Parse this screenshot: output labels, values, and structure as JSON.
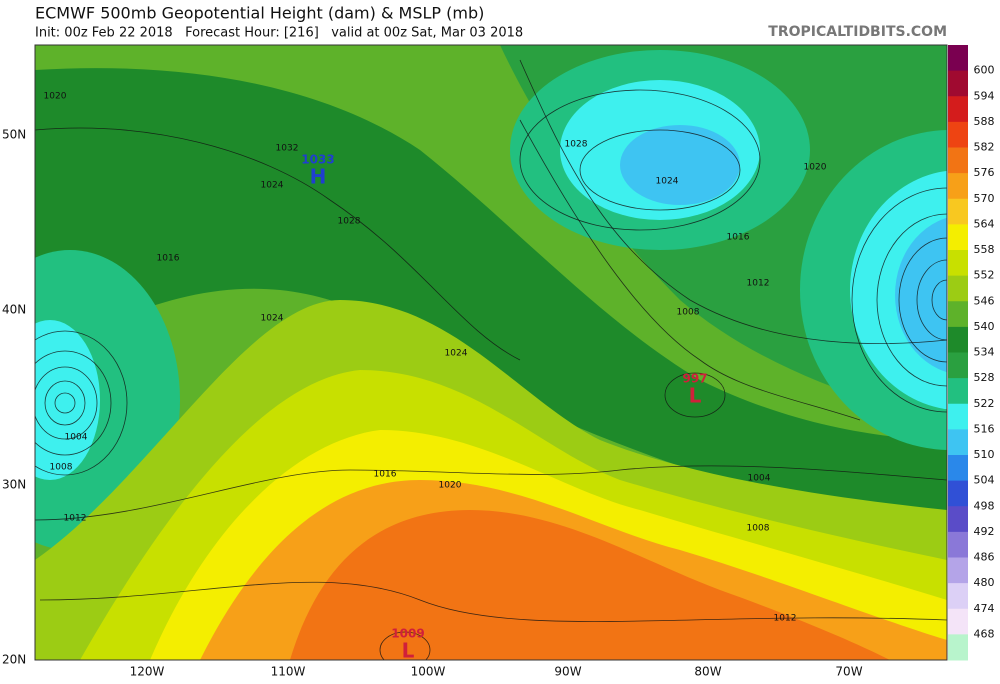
{
  "header": {
    "title": "ECMWF 500mb Geopotential Height (dam) & MSLP (mb)",
    "subtitle": "Init: 00z Feb 22 2018   Forecast Hour: [216]   valid at 00z Sat, Mar 03 2018",
    "source": "TROPICALTIDBITS.COM"
  },
  "axes": {
    "latitudes": [
      "50N",
      "40N",
      "30N",
      "20N"
    ],
    "longitudes": [
      "120W",
      "110W",
      "100W",
      "90W",
      "80W",
      "70W"
    ]
  },
  "colorbar": {
    "labels": [
      600,
      594,
      588,
      582,
      576,
      570,
      564,
      558,
      552,
      546,
      540,
      534,
      528,
      522,
      516,
      510,
      504,
      498,
      492,
      486,
      480,
      474,
      468
    ],
    "colors": [
      "#7a0050",
      "#a00a30",
      "#d41c1c",
      "#ee4412",
      "#f27414",
      "#f7a018",
      "#f8c820",
      "#f4ee00",
      "#c8e000",
      "#9ccc14",
      "#5eb22a",
      "#1e8a2a",
      "#2aa040",
      "#22c080",
      "#3ef0ee",
      "#3ec4f2",
      "#2a88ea",
      "#3050d6",
      "#5a4cc8",
      "#8a78d8",
      "#b4a4e8",
      "#dcd0f6",
      "#f4e4f8",
      "#b8f4cc"
    ]
  },
  "pressure_centers": [
    {
      "value": 1033,
      "type": "H"
    },
    {
      "value": 997,
      "type": "L"
    },
    {
      "value": 1009,
      "type": "L"
    }
  ],
  "contour_labels": [
    1020,
    1032,
    1024,
    1028,
    1016,
    1024,
    1024,
    1004,
    1008,
    1012,
    1016,
    1020,
    1028,
    1024,
    1020,
    1016,
    1012,
    1008,
    1004,
    1008,
    1012
  ]
}
